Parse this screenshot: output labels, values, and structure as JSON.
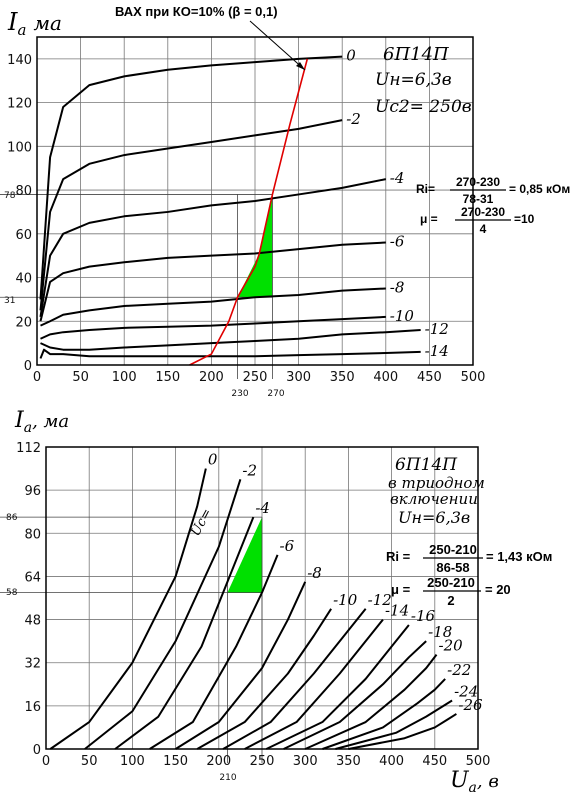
{
  "chart_data": [
    {
      "type": "line",
      "ylabel_symbol": "I",
      "ylabel_sub": "a",
      "ylabel_unit": "ма",
      "xlim": [
        0,
        500
      ],
      "ylim": [
        0,
        150
      ],
      "xticks": [
        0,
        50,
        100,
        150,
        200,
        250,
        300,
        350,
        400,
        450,
        500
      ],
      "yticks": [
        0,
        20,
        40,
        60,
        80,
        100,
        120,
        140
      ],
      "grid": true,
      "annotation_top": "ВАХ при КО=10% (β = 0,1)",
      "tube": "6П14П",
      "params": [
        "Uн=6,3в",
        "Uc2= 250в"
      ],
      "formula_ri": {
        "prefix": "Ri=",
        "num": "270-230",
        "den": "78-31",
        "result": "= 0,85 кОм"
      },
      "formula_mu": {
        "prefix": "μ =",
        "num": "270-230",
        "den": "4",
        "result": "=10"
      },
      "marker_y": [
        "78",
        "31"
      ],
      "marker_x": [
        "230",
        "270"
      ],
      "series": [
        {
          "name": "0",
          "x": [
            4,
            15,
            30,
            60,
            100,
            150,
            200,
            250,
            300,
            350
          ],
          "y": [
            30,
            95,
            118,
            128,
            132,
            135,
            137,
            138.5,
            140,
            141
          ]
        },
        {
          "name": "-2",
          "x": [
            4,
            15,
            30,
            60,
            100,
            150,
            200,
            250,
            300,
            350
          ],
          "y": [
            25,
            70,
            85,
            92,
            96,
            99,
            102,
            105,
            108,
            112
          ]
        },
        {
          "name": "-4",
          "x": [
            4,
            15,
            30,
            60,
            100,
            150,
            200,
            250,
            300,
            350,
            400
          ],
          "y": [
            22,
            50,
            60,
            65,
            68,
            70,
            73,
            75,
            78,
            81,
            85
          ]
        },
        {
          "name": "-6",
          "x": [
            4,
            15,
            30,
            60,
            100,
            150,
            200,
            250,
            300,
            350,
            400
          ],
          "y": [
            20,
            38,
            42,
            45,
            47,
            49,
            50,
            51,
            53,
            55,
            56
          ]
        },
        {
          "name": "-8",
          "x": [
            4,
            15,
            30,
            60,
            100,
            150,
            200,
            250,
            300,
            350,
            400
          ],
          "y": [
            18,
            20,
            23,
            25,
            27,
            28,
            29,
            31,
            32,
            34,
            35
          ]
        },
        {
          "name": "-10",
          "x": [
            4,
            15,
            30,
            60,
            100,
            150,
            200,
            250,
            300,
            350,
            400
          ],
          "y": [
            12,
            14,
            15,
            16,
            17,
            17.5,
            18,
            19,
            20,
            21,
            22
          ]
        },
        {
          "name": "-12",
          "x": [
            4,
            15,
            30,
            60,
            100,
            150,
            200,
            250,
            300,
            350,
            400,
            440
          ],
          "y": [
            10,
            8,
            7,
            7,
            8,
            9,
            10,
            11,
            12,
            14,
            15,
            16
          ]
        },
        {
          "name": "-14",
          "x": [
            4,
            8,
            15,
            30,
            60,
            100,
            150,
            200,
            250,
            300,
            350,
            400,
            440
          ],
          "y": [
            3,
            7,
            5,
            5,
            4,
            4,
            4,
            4,
            4,
            4.5,
            5,
            5.5,
            6
          ]
        }
      ],
      "load_line": {
        "x": [
          175,
          200,
          220,
          230,
          250,
          255,
          270,
          290,
          310
        ],
        "y": [
          0,
          5,
          20,
          31,
          45,
          51,
          78,
          110,
          140
        ]
      },
      "shaded_region": {
        "color": "#00e000",
        "x": [
          230,
          270,
          270,
          255
        ],
        "y": [
          31,
          31,
          78,
          51
        ]
      }
    },
    {
      "type": "line",
      "ylabel_symbol": "I",
      "ylabel_sub": "a",
      "ylabel_unit": ", ма",
      "xlabel_symbol": "U",
      "xlabel_sub": "a",
      "xlabel_unit": ", в",
      "xlim": [
        0,
        500
      ],
      "ylim": [
        0,
        112
      ],
      "xticks": [
        0,
        50,
        100,
        150,
        200,
        250,
        300,
        350,
        400,
        450,
        500
      ],
      "yticks": [
        0,
        16,
        32,
        48,
        64,
        80,
        96,
        112
      ],
      "grid": true,
      "tube": "6П14П",
      "params": [
        "в триодном",
        "включении",
        "Uн=6,3в"
      ],
      "formula_ri": {
        "prefix": "Ri =",
        "num": "250-210",
        "den": "86-58",
        "result": "= 1,43 кОм"
      },
      "formula_mu": {
        "prefix": "μ =",
        "num": "250-210",
        "den": "2",
        "result": "= 20"
      },
      "marker_y": [
        "86",
        "58"
      ],
      "marker_x": [
        "210"
      ],
      "uc_label": "Uc=",
      "series": [
        {
          "name": "0",
          "x": [
            5,
            50,
            100,
            150,
            175,
            185
          ],
          "y": [
            0,
            10,
            32,
            64,
            90,
            104
          ]
        },
        {
          "name": "-2",
          "x": [
            45,
            100,
            150,
            200,
            225
          ],
          "y": [
            0,
            14,
            40,
            75,
            100
          ]
        },
        {
          "name": "-4",
          "x": [
            80,
            130,
            180,
            220,
            240
          ],
          "y": [
            0,
            12,
            38,
            70,
            86
          ]
        },
        {
          "name": "-6",
          "x": [
            120,
            170,
            220,
            250,
            268
          ],
          "y": [
            0,
            10,
            38,
            58,
            72
          ]
        },
        {
          "name": "-8",
          "x": [
            150,
            200,
            250,
            280,
            300
          ],
          "y": [
            0,
            10,
            30,
            48,
            62
          ]
        },
        {
          "name": "-10",
          "x": [
            175,
            230,
            280,
            310,
            330
          ],
          "y": [
            0,
            10,
            28,
            42,
            52
          ]
        },
        {
          "name": "-12",
          "x": [
            205,
            260,
            310,
            345,
            370
          ],
          "y": [
            0,
            10,
            28,
            42,
            52
          ]
        },
        {
          "name": "-14",
          "x": [
            230,
            290,
            340,
            370,
            390
          ],
          "y": [
            0,
            10,
            28,
            40,
            48
          ]
        },
        {
          "name": "-16",
          "x": [
            255,
            320,
            370,
            400,
            420
          ],
          "y": [
            0,
            10,
            26,
            38,
            46
          ]
        },
        {
          "name": "-18",
          "x": [
            275,
            340,
            390,
            420,
            440
          ],
          "y": [
            0,
            10,
            24,
            34,
            40
          ]
        },
        {
          "name": "-20",
          "x": [
            300,
            370,
            415,
            440,
            452
          ],
          "y": [
            0,
            10,
            22,
            30,
            35
          ]
        },
        {
          "name": "-22",
          "x": [
            320,
            390,
            430,
            450,
            462
          ],
          "y": [
            0,
            8,
            17,
            22,
            26
          ]
        },
        {
          "name": "-24",
          "x": [
            335,
            405,
            440,
            460,
            470
          ],
          "y": [
            0,
            6,
            12,
            16,
            18
          ]
        },
        {
          "name": "-26",
          "x": [
            350,
            415,
            450,
            465,
            475
          ],
          "y": [
            0,
            4,
            8,
            11,
            13
          ]
        }
      ],
      "shaded_region": {
        "color": "#00e000",
        "x": [
          210,
          250,
          250
        ],
        "y": [
          58,
          58,
          86
        ]
      }
    }
  ]
}
